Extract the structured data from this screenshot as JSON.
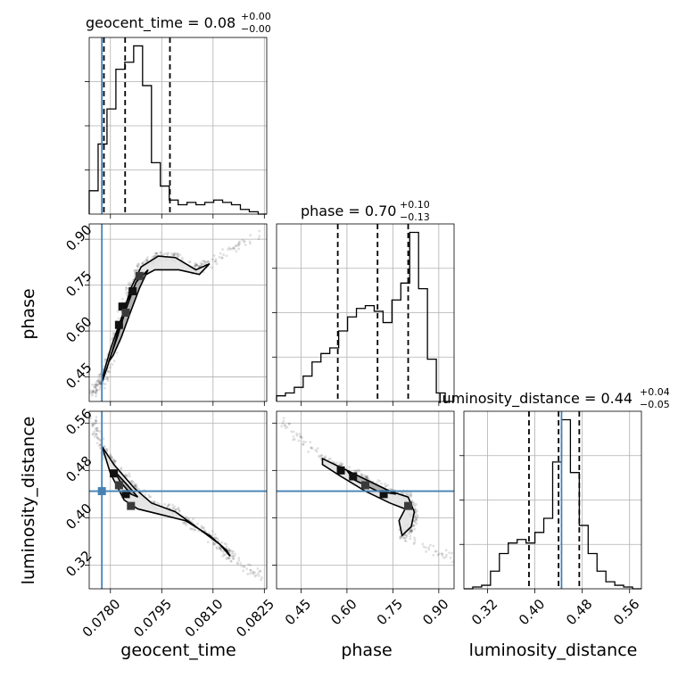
{
  "colors": {
    "truth": "#4682b4",
    "hist": "#000000",
    "grid": "#b0b0b0"
  },
  "chart_data": {
    "type": "corner",
    "parameters": [
      "geocent_time",
      "phase",
      "luminosity_distance"
    ],
    "titles": {
      "geocent_time": {
        "prefix": "geocent_time = 0.08",
        "plus": "+0.00",
        "minus": "−0.00"
      },
      "phase": {
        "prefix": "phase = 0.70",
        "plus": "+0.10",
        "minus": "−0.13"
      },
      "luminosity_distance": {
        "prefix": "luminosity_distance = 0.44",
        "plus": "+0.04",
        "minus": "−0.05"
      }
    },
    "axes": {
      "geocent_time": {
        "range": [
          0.07738,
          0.08257
        ],
        "ticks": [
          0.078,
          0.0795,
          0.081,
          0.0825
        ],
        "tick_labels": [
          "0.0780",
          "0.0795",
          "0.0810",
          "0.0825"
        ],
        "truth": 0.07775,
        "quantiles": [
          0.07781,
          0.07843,
          0.07974
        ]
      },
      "phase": {
        "range": [
          0.37,
          0.95
        ],
        "ticks": [
          0.45,
          0.6,
          0.75,
          0.9
        ],
        "tick_labels": [
          "0.45",
          "0.60",
          "0.75",
          "0.90"
        ],
        "quantiles": [
          0.57,
          0.7,
          0.8
        ]
      },
      "luminosity_distance": {
        "range": [
          0.28,
          0.58
        ],
        "ticks": [
          0.32,
          0.4,
          0.48,
          0.56
        ],
        "tick_labels": [
          "0.32",
          "0.40",
          "0.48",
          "0.56"
        ],
        "truth": 0.445,
        "quantiles": [
          0.39,
          0.44,
          0.475
        ]
      }
    },
    "histograms": {
      "geocent_time": {
        "edges": [
          0.07738,
          0.07764,
          0.0779,
          0.07816,
          0.07842,
          0.07868,
          0.07894,
          0.0792,
          0.07946,
          0.07972,
          0.07998,
          0.08024,
          0.0805,
          0.08076,
          0.08102,
          0.08128,
          0.08154,
          0.0818,
          0.08206,
          0.08232,
          0.08257
        ],
        "counts": [
          10,
          30,
          45,
          62,
          65,
          72,
          55,
          22,
          12,
          6,
          4,
          5,
          4,
          5,
          6,
          5,
          4,
          2,
          1,
          0
        ]
      },
      "phase": {
        "edges": [
          0.37,
          0.399,
          0.428,
          0.457,
          0.486,
          0.515,
          0.544,
          0.573,
          0.602,
          0.631,
          0.66,
          0.689,
          0.718,
          0.747,
          0.776,
          0.805,
          0.834,
          0.863,
          0.892,
          0.921,
          0.95
        ],
        "counts": [
          2,
          3,
          5,
          9,
          14,
          17,
          19,
          25,
          30,
          33,
          34,
          32,
          28,
          36,
          42,
          60,
          40,
          15,
          3,
          0
        ]
      },
      "luminosity_distance": {
        "edges": [
          0.28,
          0.295,
          0.31,
          0.325,
          0.34,
          0.355,
          0.37,
          0.385,
          0.4,
          0.415,
          0.43,
          0.445,
          0.46,
          0.475,
          0.49,
          0.505,
          0.52,
          0.535,
          0.55,
          0.565,
          0.58
        ],
        "counts": [
          0,
          0.5,
          1,
          5,
          10,
          13,
          14,
          13,
          16,
          20,
          36,
          48,
          33,
          18,
          10,
          5,
          2,
          1,
          0.5,
          0
        ]
      }
    },
    "contours": {
      "geocent_time__phase": [
        [
          [
            0.07773,
            0.425
          ],
          [
            0.0779,
            0.48
          ],
          [
            0.07815,
            0.57
          ],
          [
            0.07835,
            0.65
          ],
          [
            0.0786,
            0.74
          ],
          [
            0.0789,
            0.81
          ],
          [
            0.0794,
            0.845
          ],
          [
            0.0799,
            0.84
          ],
          [
            0.0805,
            0.8
          ],
          [
            0.0809,
            0.82
          ],
          [
            0.0806,
            0.785
          ],
          [
            0.08,
            0.8
          ],
          [
            0.0793,
            0.8
          ],
          [
            0.0788,
            0.77
          ],
          [
            0.0785,
            0.7
          ],
          [
            0.07825,
            0.62
          ],
          [
            0.078,
            0.54
          ],
          [
            0.07782,
            0.47
          ],
          [
            0.07773,
            0.425
          ]
        ],
        [
          [
            0.07795,
            0.5
          ],
          [
            0.0782,
            0.58
          ],
          [
            0.07845,
            0.67
          ],
          [
            0.07875,
            0.76
          ],
          [
            0.0791,
            0.8
          ],
          [
            0.07885,
            0.74
          ],
          [
            0.07858,
            0.66
          ],
          [
            0.07832,
            0.58
          ],
          [
            0.07808,
            0.52
          ],
          [
            0.07795,
            0.5
          ]
        ]
      ],
      "geocent_time__luminosity_distance": [
        [
          [
            0.07776,
            0.52
          ],
          [
            0.0781,
            0.49
          ],
          [
            0.0787,
            0.45
          ],
          [
            0.0792,
            0.425
          ],
          [
            0.0799,
            0.41
          ],
          [
            0.0805,
            0.385
          ],
          [
            0.0812,
            0.355
          ],
          [
            0.0815,
            0.335
          ],
          [
            0.0814,
            0.345
          ],
          [
            0.0809,
            0.37
          ],
          [
            0.0802,
            0.395
          ],
          [
            0.0795,
            0.405
          ],
          [
            0.0788,
            0.415
          ],
          [
            0.0784,
            0.43
          ],
          [
            0.078,
            0.475
          ],
          [
            0.07776,
            0.52
          ]
        ],
        [
          [
            0.0781,
            0.48
          ],
          [
            0.0785,
            0.455
          ],
          [
            0.0788,
            0.435
          ],
          [
            0.0786,
            0.44
          ],
          [
            0.0783,
            0.46
          ],
          [
            0.0781,
            0.48
          ]
        ]
      ],
      "phase__luminosity_distance": [
        [
          [
            0.52,
            0.5
          ],
          [
            0.58,
            0.485
          ],
          [
            0.66,
            0.465
          ],
          [
            0.74,
            0.445
          ],
          [
            0.8,
            0.435
          ],
          [
            0.82,
            0.41
          ],
          [
            0.81,
            0.385
          ],
          [
            0.78,
            0.37
          ],
          [
            0.77,
            0.395
          ],
          [
            0.79,
            0.415
          ],
          [
            0.74,
            0.425
          ],
          [
            0.66,
            0.445
          ],
          [
            0.58,
            0.47
          ],
          [
            0.52,
            0.49
          ],
          [
            0.52,
            0.5
          ]
        ],
        [
          [
            0.6,
            0.48
          ],
          [
            0.68,
            0.46
          ],
          [
            0.76,
            0.44
          ],
          [
            0.7,
            0.445
          ],
          [
            0.62,
            0.465
          ],
          [
            0.6,
            0.48
          ]
        ]
      ]
    },
    "hotspots": {
      "geocent_time__phase": [
        [
          0.07835,
          0.68
        ],
        [
          0.07845,
          0.66
        ],
        [
          0.07865,
          0.73
        ],
        [
          0.07885,
          0.78
        ],
        [
          0.07825,
          0.62
        ]
      ],
      "geocent_time__luminosity_distance": [
        [
          0.0781,
          0.475
        ],
        [
          0.07825,
          0.455
        ],
        [
          0.07845,
          0.44
        ],
        [
          0.0786,
          0.42
        ]
      ],
      "phase__luminosity_distance": [
        [
          0.62,
          0.47
        ],
        [
          0.66,
          0.455
        ],
        [
          0.72,
          0.44
        ],
        [
          0.8,
          0.42
        ],
        [
          0.58,
          0.48
        ]
      ]
    },
    "scatter_tails": {
      "geocent_time__phase": {
        "from": [
          0.07745,
          0.4
        ],
        "to": [
          0.0825,
          0.93
        ]
      },
      "geocent_time__luminosity_distance": {
        "from": [
          0.07745,
          0.57
        ],
        "to": [
          0.0824,
          0.3
        ]
      },
      "phase__luminosity_distance": {
        "from": [
          0.37,
          0.57
        ],
        "to": [
          0.95,
          0.33
        ]
      }
    }
  }
}
